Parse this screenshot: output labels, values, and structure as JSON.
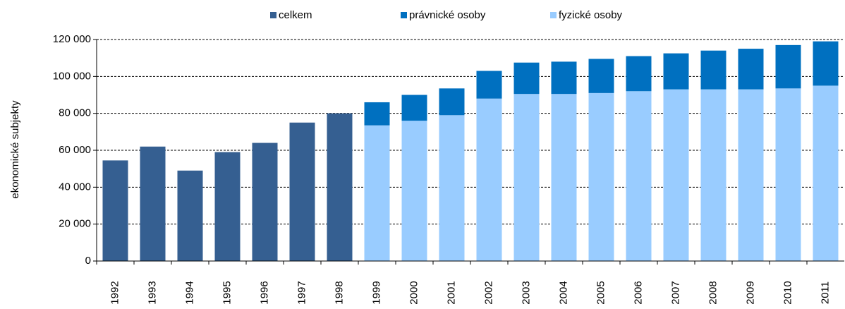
{
  "chart_data": {
    "type": "bar",
    "stacked": true,
    "y_label": "ekonomické subjekty",
    "categories": [
      "1992",
      "1993",
      "1994",
      "1995",
      "1996",
      "1997",
      "1998",
      "1999",
      "2000",
      "2001",
      "2002",
      "2003",
      "2004",
      "2005",
      "2006",
      "2007",
      "2008",
      "2009",
      "2010",
      "2011"
    ],
    "series": [
      {
        "name": "celkem",
        "color": "#355f91",
        "values": [
          54500,
          62000,
          49000,
          59000,
          64000,
          75000,
          80000,
          null,
          null,
          null,
          null,
          null,
          null,
          null,
          null,
          null,
          null,
          null,
          null,
          null
        ]
      },
      {
        "name": "právnické osoby",
        "color": "#0070c0",
        "values": [
          null,
          null,
          null,
          null,
          null,
          null,
          null,
          12500,
          14000,
          14500,
          15000,
          17000,
          17500,
          18500,
          19000,
          19500,
          21000,
          22000,
          23500,
          24000
        ]
      },
      {
        "name": "fyzické osoby",
        "color": "#99ccff",
        "values": [
          null,
          null,
          null,
          null,
          null,
          null,
          null,
          73500,
          76000,
          79000,
          88000,
          90500,
          90500,
          91000,
          92000,
          93000,
          93000,
          93000,
          93500,
          95000
        ]
      }
    ],
    "ylim": [
      0,
      120000
    ],
    "yticks": [
      0,
      {
        "value": 20000,
        "label": "20 000"
      },
      {
        "value": 40000,
        "label": "40 000"
      },
      {
        "value": 60000,
        "label": "60 000"
      },
      {
        "value": 80000,
        "label": "80 000"
      },
      {
        "value": 100000,
        "label": "100 000"
      },
      {
        "value": 120000,
        "label": "120 000"
      }
    ],
    "grid": true,
    "legend": "top"
  }
}
